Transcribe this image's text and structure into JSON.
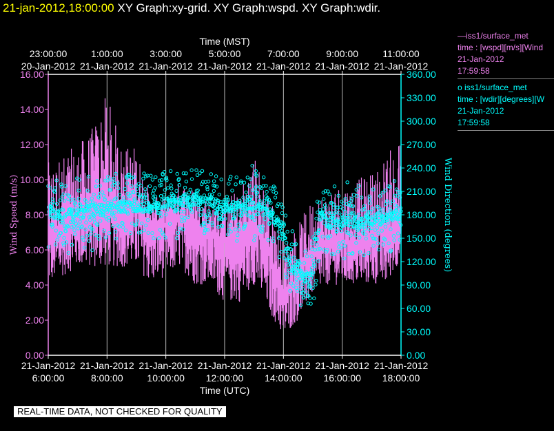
{
  "header": {
    "timestamp": "21-jan-2012,18:00:00",
    "graphs": "XY Graph:xy-grid.  XY Graph:wspd.  XY Graph:wdir."
  },
  "legend": [
    {
      "line1": "—iss1/surface_met",
      "line2": "time : [wspd][m/s][Wind",
      "line3": "21-Jan-2012",
      "line4": "17:59:58",
      "color": "#ee82ee"
    },
    {
      "line1": "o  iss1/surface_met",
      "line2": "time : [wdir][degrees][W",
      "line3": "21-Jan-2012",
      "line4": "17:59:58",
      "color": "#00ffff"
    }
  ],
  "notice": "REAL-TIME DATA, NOT CHECKED FOR QUALITY",
  "chart_data": {
    "type": "line",
    "top_axis_label": "Time (MST)",
    "top_ticks": [
      {
        "time": "23:00:00",
        "date": "20-Jan-2012"
      },
      {
        "time": "1:00:00",
        "date": "21-Jan-2012"
      },
      {
        "time": "3:00:00",
        "date": "21-Jan-2012"
      },
      {
        "time": "5:00:00",
        "date": "21-Jan-2012"
      },
      {
        "time": "7:00:00",
        "date": "21-Jan-2012"
      },
      {
        "time": "9:00:00",
        "date": "21-Jan-2012"
      },
      {
        "time": "11:00:00",
        "date": "21-Jan-2012"
      }
    ],
    "bottom_axis_label": "Time (UTC)",
    "bottom_ticks": [
      {
        "time": "6:00:00",
        "date": "21-Jan-2012"
      },
      {
        "time": "8:00:00",
        "date": "21-Jan-2012"
      },
      {
        "time": "10:00:00",
        "date": "21-Jan-2012"
      },
      {
        "time": "12:00:00",
        "date": "21-Jan-2012"
      },
      {
        "time": "14:00:00",
        "date": "21-Jan-2012"
      },
      {
        "time": "16:00:00",
        "date": "21-Jan-2012"
      },
      {
        "time": "18:00:00",
        "date": "21-Jan-2012"
      }
    ],
    "xlim_utc_hours": [
      6,
      18
    ],
    "left_axis": {
      "label": "Wind Speed (m/s)",
      "ylim": [
        0,
        16
      ],
      "ticks": [
        "0.00",
        "2.00",
        "4.00",
        "6.00",
        "8.00",
        "10.00",
        "12.00",
        "14.00",
        "16.00"
      ],
      "color": "#ee82ee"
    },
    "right_axis": {
      "label": "Wind Direction (degrees)",
      "ylim": [
        0,
        360
      ],
      "ticks": [
        "0.00",
        "30.00",
        "60.00",
        "90.00",
        "120.00",
        "150.00",
        "180.00",
        "210.00",
        "240.00",
        "270.00",
        "300.00",
        "330.00",
        "360.00"
      ],
      "color": "#00ffff"
    },
    "series": [
      {
        "name": "iss1/surface_met wspd",
        "axis": "left",
        "style": "line",
        "color": "#ee82ee",
        "x": [
          6,
          6.5,
          7,
          7.5,
          8,
          8.5,
          9,
          9.5,
          10,
          10.5,
          11,
          11.5,
          12,
          12.5,
          13,
          13.5,
          14,
          14.5,
          15,
          15.5,
          16,
          16.5,
          17,
          17.5,
          18
        ],
        "y_low": [
          4,
          4.5,
          5,
          5,
          5,
          5,
          5,
          4,
          4.5,
          5,
          4,
          4,
          3,
          3,
          4,
          2.5,
          1,
          2,
          3.5,
          4,
          4,
          4,
          4,
          4,
          5.5
        ],
        "y_mid": [
          7,
          7.5,
          8,
          8.5,
          8.5,
          8.5,
          8.5,
          7.5,
          7.5,
          8,
          7.5,
          7,
          6.5,
          6.5,
          7.5,
          6,
          3.5,
          4.5,
          6,
          6.5,
          6.5,
          6.5,
          7,
          7,
          8
        ],
        "y_high": [
          11,
          11.5,
          12,
          13,
          15,
          12,
          12,
          9,
          9,
          10,
          9.5,
          9,
          9,
          9.5,
          11.5,
          9.5,
          6.5,
          7.5,
          9,
          9.5,
          10,
          10,
          10.5,
          11.5,
          12.5
        ]
      },
      {
        "name": "iss1/surface_met wdir",
        "axis": "right",
        "style": "circle-markers",
        "color": "#00ffff",
        "x": [
          6,
          6.5,
          7,
          7.5,
          8,
          8.5,
          9,
          9.5,
          10,
          10.5,
          11,
          11.5,
          12,
          12.5,
          13,
          13.5,
          14,
          14.25,
          14.5,
          14.75,
          15,
          15.25,
          15.5,
          16,
          16.5,
          17,
          17.5,
          18
        ],
        "y": [
          185,
          180,
          182,
          185,
          188,
          190,
          190,
          190,
          195,
          198,
          200,
          198,
          190,
          188,
          195,
          185,
          160,
          115,
          110,
          100,
          105,
          180,
          175,
          170,
          172,
          175,
          175,
          182
        ]
      }
    ]
  }
}
